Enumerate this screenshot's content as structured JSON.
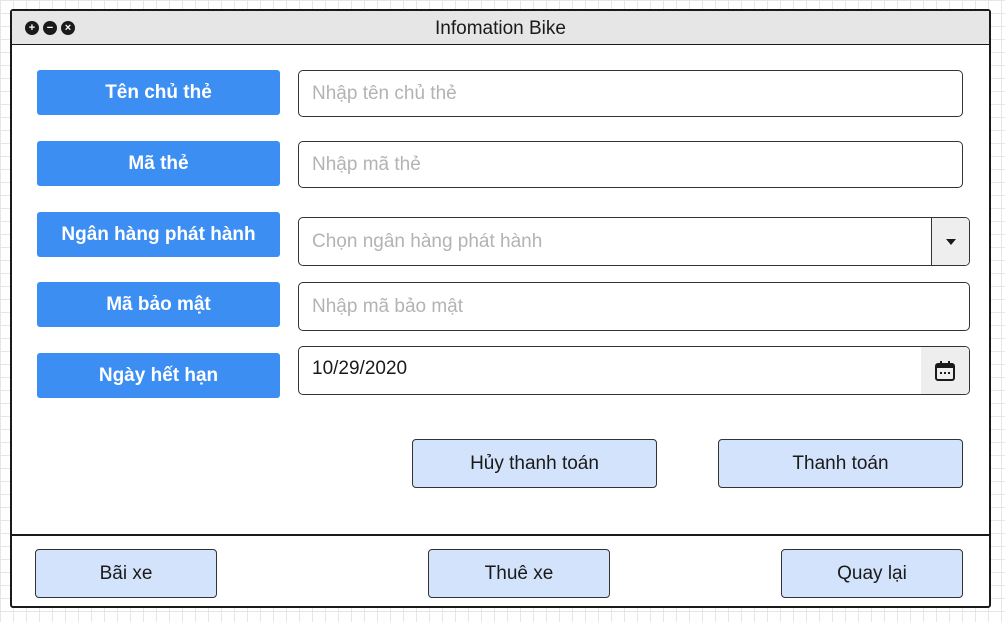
{
  "window": {
    "title": "Infomation Bike",
    "controls": [
      "plus-circle-icon",
      "minus-circle-icon",
      "close-circle-icon"
    ]
  },
  "form": {
    "card_holder": {
      "label": "Tên chủ thẻ",
      "placeholder": "Nhập tên chủ thẻ"
    },
    "card_number": {
      "label": "Mã thẻ",
      "placeholder": "Nhập mã thẻ"
    },
    "issuing_bank": {
      "label": "Ngân hàng phát hành",
      "placeholder": "Chọn ngân hàng phát hành"
    },
    "security_code": {
      "label": "Mã bảo mật",
      "placeholder": "Nhập mã bảo mật"
    },
    "expiry_date": {
      "label": "Ngày hết hạn",
      "value": "10/29/2020"
    }
  },
  "actions": {
    "cancel_label": "Hủy thanh toán",
    "pay_label": "Thanh toán"
  },
  "footer": {
    "parking_label": "Bãi xe",
    "rent_label": "Thuê xe",
    "back_label": "Quay lại"
  },
  "colors": {
    "label_button": "#3d8ef3",
    "action_button": "#d3e3fb",
    "titlebar": "#e6e6e6",
    "placeholder": "#b3b3b3"
  }
}
